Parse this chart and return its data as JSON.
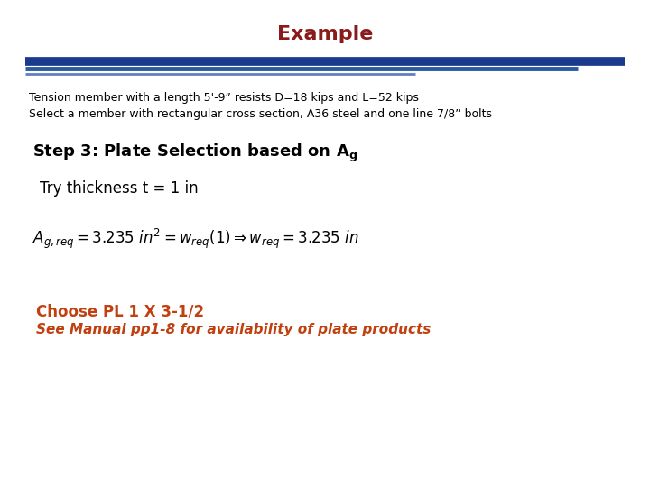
{
  "title": "Example",
  "title_color": "#8B1A1A",
  "title_fontsize": 16,
  "title_fontweight": "bold",
  "line_dark_color": "#1A3A8C",
  "line_mid_color": "#2A5AA0",
  "line_light_color": "#6080C0",
  "body_text_line1": "Tension member with a length 5'-9” resists D=18 kips and L=52 kips",
  "body_text_line2": "Select a member with rectangular cross section, A36 steel and one line 7/8” bolts",
  "body_fontsize": 9,
  "step_fontsize": 13,
  "try_text": "Try thickness t = 1 in",
  "try_fontsize": 12,
  "formula_fontsize": 12,
  "choose_text": "Choose PL 1 X 3-1/2",
  "choose_fontsize": 12,
  "see_text": "See Manual pp1-8 for availability of plate products",
  "see_fontsize": 11,
  "orange_color": "#C04010",
  "background_color": "#FFFFFF"
}
